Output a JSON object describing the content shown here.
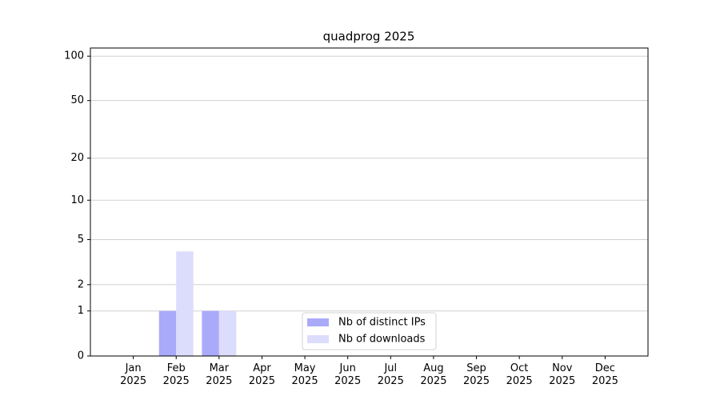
{
  "chart_data": {
    "type": "bar",
    "title": "quadprog 2025",
    "categories": [
      "Jan\n2025",
      "Feb\n2025",
      "Mar\n2025",
      "Apr\n2025",
      "May\n2025",
      "Jun\n2025",
      "Jul\n2025",
      "Aug\n2025",
      "Sep\n2025",
      "Oct\n2025",
      "Nov\n2025",
      "Dec\n2025"
    ],
    "series": [
      {
        "name": "Nb of distinct IPs",
        "color": "#aaaafa",
        "values": [
          0,
          1,
          1,
          0,
          0,
          0,
          0,
          0,
          0,
          0,
          0,
          0
        ]
      },
      {
        "name": "Nb of downloads",
        "color": "#dcdcfc",
        "values": [
          0,
          4,
          1,
          0,
          0,
          0,
          0,
          0,
          0,
          0,
          0,
          0
        ]
      }
    ],
    "yscale": "log1p",
    "ylim": [
      0,
      113.5
    ],
    "yticks": [
      0,
      1,
      2,
      5,
      10,
      20,
      50,
      100
    ],
    "grid": true,
    "legend": "lower center"
  }
}
